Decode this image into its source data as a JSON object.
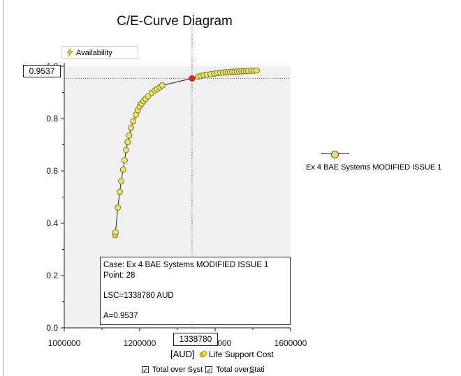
{
  "chart_data": {
    "type": "scatter",
    "title": "C/E-Curve Diagram",
    "ylabel": "Availability",
    "xlabel_unit": "[AUD]",
    "xlabel": "Life Support Cost",
    "xlim": [
      1000000,
      1600000
    ],
    "ylim": [
      0.0,
      1.0
    ],
    "x_ticks": [
      "1000000",
      "1200000",
      "1400000",
      "1600000"
    ],
    "y_ticks": [
      "0.0",
      "0.2",
      "0.4",
      "0.6",
      "0.8",
      "1.0"
    ],
    "grid": false,
    "legend_position": "right",
    "series": [
      {
        "name": "Ex 4 BAE Systems MODIFIED ISSUE 1",
        "color": "#e9e36a",
        "points": [
          {
            "x": 1135000,
            "y": 0.355
          },
          {
            "x": 1136000,
            "y": 0.365
          },
          {
            "x": 1142000,
            "y": 0.46
          },
          {
            "x": 1147000,
            "y": 0.52
          },
          {
            "x": 1151000,
            "y": 0.56
          },
          {
            "x": 1156000,
            "y": 0.605
          },
          {
            "x": 1160000,
            "y": 0.64
          },
          {
            "x": 1164000,
            "y": 0.68
          },
          {
            "x": 1168000,
            "y": 0.71
          },
          {
            "x": 1172000,
            "y": 0.735
          },
          {
            "x": 1177000,
            "y": 0.765
          },
          {
            "x": 1183000,
            "y": 0.79
          },
          {
            "x": 1190000,
            "y": 0.815
          },
          {
            "x": 1195000,
            "y": 0.832
          },
          {
            "x": 1200000,
            "y": 0.847
          },
          {
            "x": 1205000,
            "y": 0.857
          },
          {
            "x": 1210000,
            "y": 0.867
          },
          {
            "x": 1216000,
            "y": 0.876
          },
          {
            "x": 1222000,
            "y": 0.885
          },
          {
            "x": 1232000,
            "y": 0.898
          },
          {
            "x": 1240000,
            "y": 0.907
          },
          {
            "x": 1246000,
            "y": 0.913
          },
          {
            "x": 1253000,
            "y": 0.92
          },
          {
            "x": 1260000,
            "y": 0.927
          },
          {
            "x": 1338780,
            "y": 0.9537,
            "selected": true
          },
          {
            "x": 1355000,
            "y": 0.96
          },
          {
            "x": 1362000,
            "y": 0.963
          },
          {
            "x": 1370000,
            "y": 0.966
          },
          {
            "x": 1378000,
            "y": 0.968
          },
          {
            "x": 1388000,
            "y": 0.97
          },
          {
            "x": 1398000,
            "y": 0.972
          },
          {
            "x": 1406000,
            "y": 0.974
          },
          {
            "x": 1414000,
            "y": 0.975
          },
          {
            "x": 1421000,
            "y": 0.976
          },
          {
            "x": 1428000,
            "y": 0.977
          },
          {
            "x": 1434000,
            "y": 0.977
          },
          {
            "x": 1440000,
            "y": 0.978
          },
          {
            "x": 1446000,
            "y": 0.979
          },
          {
            "x": 1452000,
            "y": 0.979
          },
          {
            "x": 1458000,
            "y": 0.98
          },
          {
            "x": 1464000,
            "y": 0.98
          },
          {
            "x": 1470000,
            "y": 0.981
          },
          {
            "x": 1476000,
            "y": 0.981
          },
          {
            "x": 1482000,
            "y": 0.982
          },
          {
            "x": 1488000,
            "y": 0.982
          },
          {
            "x": 1496000,
            "y": 0.983
          },
          {
            "x": 1502000,
            "y": 0.983
          },
          {
            "x": 1510000,
            "y": 0.984
          }
        ]
      }
    ],
    "selected_point_color": "#e0272a",
    "cursor": {
      "x_value": "1338780",
      "y_value": "0.9537"
    }
  },
  "tooltip": {
    "case": "Case: Ex 4 BAE Systems MODIFIED ISSUE 1",
    "point": "Point: 28",
    "lsc": "LSC=1338780 AUD",
    "a": "A=0.9537"
  },
  "options": [
    {
      "label_pre": "Total over S",
      "label_ul": "y",
      "label_post": "st",
      "checked": "✓"
    },
    {
      "label_pre": "Total over ",
      "label_ul": "S",
      "label_post": "tati",
      "checked": "✓"
    }
  ],
  "icons": {
    "y_axis_icon": "lightning-icon",
    "x_axis_icon": "coins-icon"
  }
}
